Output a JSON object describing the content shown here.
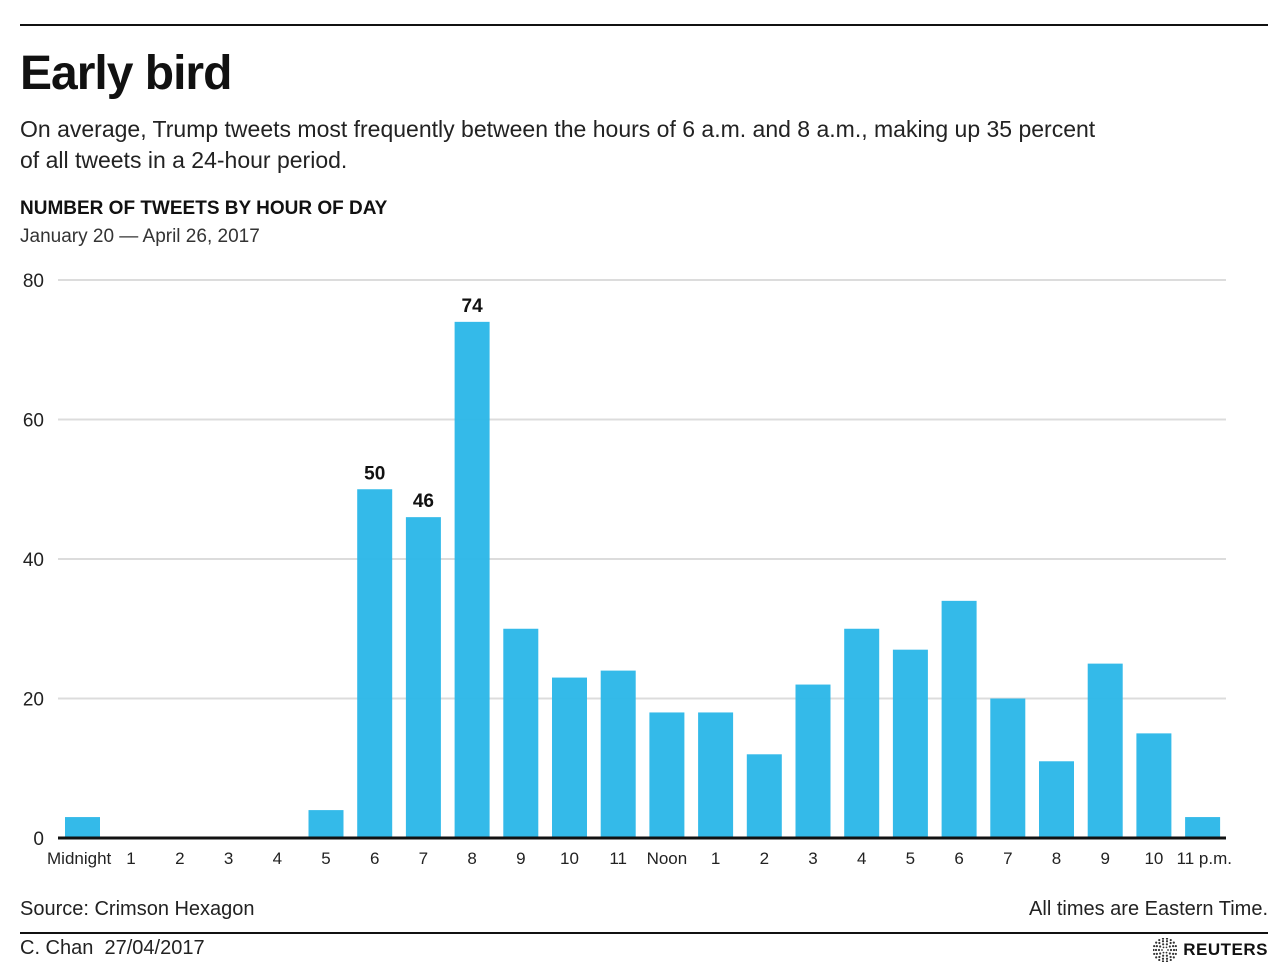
{
  "header": {
    "title": "Early bird",
    "subtitle": "On average, Trump tweets most frequently between the hours of 6 a.m. and 8 a.m., making up 35 percent of all tweets in a 24-hour period."
  },
  "chart_data": {
    "type": "bar",
    "title": "NUMBER OF TWEETS BY HOUR OF DAY",
    "subtitle": "January 20 — April 26, 2017",
    "xlabel": "",
    "ylabel": "",
    "ylim": [
      0,
      80
    ],
    "yticks": [
      0,
      20,
      40,
      60,
      80
    ],
    "grid": true,
    "bar_color": "#29b6e8",
    "categories": [
      "Midnight",
      "1",
      "2",
      "3",
      "4",
      "5",
      "6",
      "7",
      "8",
      "9",
      "10",
      "11",
      "Noon",
      "1",
      "2",
      "3",
      "4",
      "5",
      "6",
      "7",
      "8",
      "9",
      "10",
      "11 p.m."
    ],
    "values": [
      3,
      0,
      0,
      0,
      0,
      4,
      50,
      46,
      74,
      30,
      23,
      24,
      18,
      18,
      12,
      22,
      30,
      27,
      34,
      20,
      11,
      25,
      15,
      3
    ],
    "data_labels": [
      {
        "index": 6,
        "text": "50"
      },
      {
        "index": 7,
        "text": "46"
      },
      {
        "index": 8,
        "text": "74"
      }
    ]
  },
  "footer": {
    "source": "Source: Crimson Hexagon",
    "note": "All times are Eastern Time.",
    "credit": "C. Chan  27/04/2017",
    "logo_text": "REUTERS",
    "logo_icon": "reuters-dot-ring-icon"
  }
}
